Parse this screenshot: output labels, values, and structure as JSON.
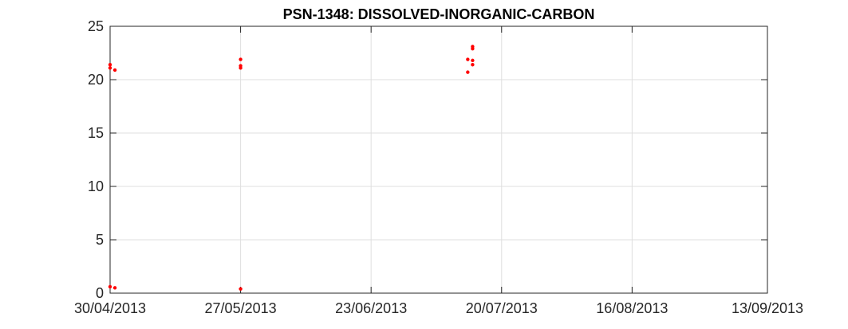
{
  "chart_data": {
    "type": "scatter",
    "title": "PSN-1348: DISSOLVED-INORGANIC-CARBON",
    "xlabel": "",
    "ylabel": "",
    "x_axis_type": "date",
    "xlim": [
      "2013-04-30",
      "2013-09-13"
    ],
    "ylim": [
      0,
      25
    ],
    "xticks": [
      "2013-04-30",
      "2013-05-27",
      "2013-06-23",
      "2013-07-20",
      "2013-08-16",
      "2013-09-13"
    ],
    "xtick_labels": [
      "30/04/2013",
      "27/05/2013",
      "23/06/2013",
      "20/07/2013",
      "16/08/2013",
      "13/09/2013"
    ],
    "yticks": [
      0,
      5,
      10,
      15,
      20,
      25
    ],
    "ytick_labels": [
      "0",
      "5",
      "10",
      "15",
      "20",
      "25"
    ],
    "grid": true,
    "marker_color": "#ff0000",
    "series": [
      {
        "points": [
          {
            "x": "2013-04-30",
            "y": 21.4
          },
          {
            "x": "2013-04-30",
            "y": 21.1
          },
          {
            "x": "2013-05-01",
            "y": 20.9
          },
          {
            "x": "2013-04-30",
            "y": 0.6
          },
          {
            "x": "2013-05-01",
            "y": 0.5
          },
          {
            "x": "2013-05-27",
            "y": 21.9
          },
          {
            "x": "2013-05-27",
            "y": 21.3
          },
          {
            "x": "2013-05-27",
            "y": 21.1
          },
          {
            "x": "2013-05-27",
            "y": 0.4
          },
          {
            "x": "2013-07-13",
            "y": 21.9
          },
          {
            "x": "2013-07-13",
            "y": 20.7
          },
          {
            "x": "2013-07-14",
            "y": 23.1
          },
          {
            "x": "2013-07-14",
            "y": 22.9
          },
          {
            "x": "2013-07-14",
            "y": 21.8
          },
          {
            "x": "2013-07-14",
            "y": 21.4
          }
        ]
      }
    ]
  }
}
